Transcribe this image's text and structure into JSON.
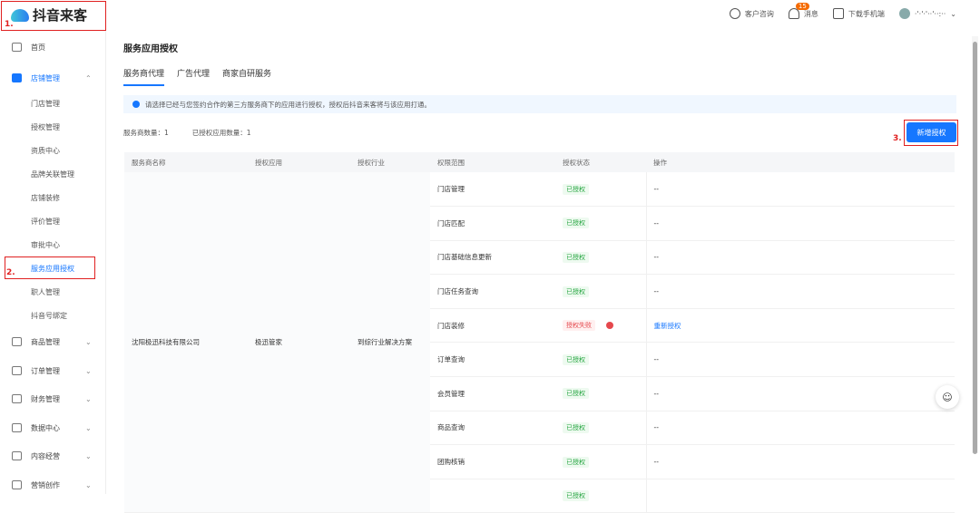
{
  "app": {
    "name": "抖音来客"
  },
  "topbar": {
    "support": "客户咨询",
    "messages": "消息",
    "message_count": "15",
    "download": "下载手机端",
    "user": "·'·'·'··'··:··"
  },
  "sidebar": {
    "items": [
      {
        "label": "首页",
        "icon": "home-icon"
      },
      {
        "label": "店铺管理",
        "icon": "store-icon",
        "expanded": true,
        "children": [
          "门店管理",
          "授权管理",
          "资质中心",
          "品牌关联管理",
          "店铺装修",
          "评价管理",
          "审批中心",
          "服务应用授权",
          "职人管理",
          "抖音号绑定"
        ],
        "selected": "服务应用授权"
      },
      {
        "label": "商品管理",
        "icon": "goods-icon"
      },
      {
        "label": "订单管理",
        "icon": "order-icon"
      },
      {
        "label": "财务管理",
        "icon": "wallet-icon"
      },
      {
        "label": "数据中心",
        "icon": "chart-icon"
      },
      {
        "label": "内容经营",
        "icon": "megaphone-icon"
      },
      {
        "label": "营销创作",
        "icon": "marketing-icon"
      }
    ]
  },
  "main": {
    "title": "服务应用授权",
    "tabs": [
      {
        "label": "服务商代理",
        "active": true
      },
      {
        "label": "广告代理"
      },
      {
        "label": "商家自研服务"
      }
    ],
    "notice": "请选择已经与您签约合作的第三方服务商下的应用进行授权，授权后抖音来客将与该应用打通。",
    "counts": {
      "providers": "服务商数量：1",
      "apps": "已授权应用数量：1"
    },
    "add_button": "新增授权",
    "table": {
      "columns": [
        "服务商名称",
        "授权应用",
        "授权行业",
        "权限范围",
        "授权状态",
        "操作"
      ],
      "provider": "沈阳极迅科技有限公司",
      "app": "极迅管家",
      "industry": "到综行业解决方案",
      "rows": [
        {
          "scope": "门店管理",
          "status": "已授权",
          "action": "--"
        },
        {
          "scope": "门店匹配",
          "status": "已授权",
          "action": "--"
        },
        {
          "scope": "门店基础信息更新",
          "status": "已授权",
          "action": "--"
        },
        {
          "scope": "门店任务查询",
          "status": "已授权",
          "action": "--"
        },
        {
          "scope": "门店装修",
          "status": "授权失败",
          "action": "重新授权",
          "failed": true
        },
        {
          "scope": "订单查询",
          "status": "已授权",
          "action": "--"
        },
        {
          "scope": "会员管理",
          "status": "已授权",
          "action": "--"
        },
        {
          "scope": "商品查询",
          "status": "已授权",
          "action": "--"
        },
        {
          "scope": "团购核销",
          "status": "已授权",
          "action": "--"
        },
        {
          "scope": "",
          "status": "已授权",
          "action": ""
        }
      ]
    }
  },
  "annotations": [
    "1.",
    "2.",
    "3."
  ],
  "colors": {
    "accent": "#1677ff",
    "success": "#26a641",
    "error": "#e5484d",
    "annotation": "#e02020"
  }
}
